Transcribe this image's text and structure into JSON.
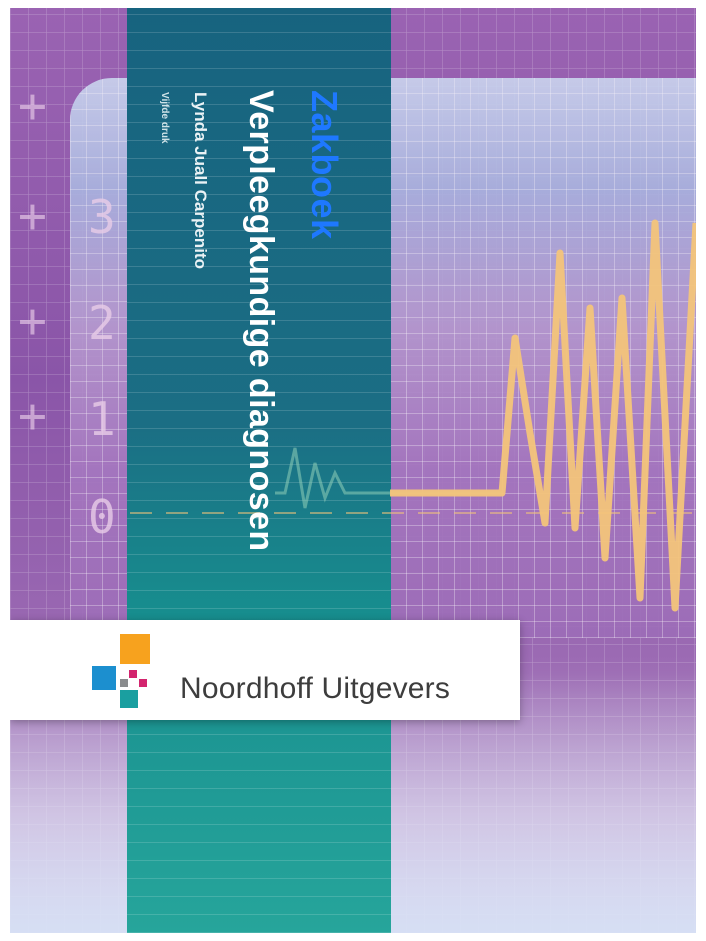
{
  "cover": {
    "series": "Zakboek",
    "title": "Verpleegkundige diagnosen",
    "author": "Lynda Juall Carpenito",
    "edition": "Vijfde druk",
    "publisher": "Noordhoff Uitgevers",
    "scale_numbers": [
      "3",
      "2",
      "1",
      "0"
    ]
  },
  "colors": {
    "background": "#8a55a8",
    "spine": "#17637f",
    "series_text": "#1e78ff",
    "wave": "#f3c47a",
    "logo_orange": "#f7a21e",
    "logo_blue": "#1c8fcf",
    "logo_teal": "#1a9fa0",
    "logo_pink": "#d3246e"
  }
}
